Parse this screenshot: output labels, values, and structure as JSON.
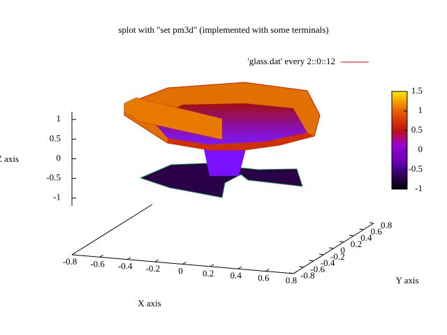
{
  "chart_data": {
    "type": "surface",
    "title": "splot with \"set pm3d\" (implemented with some terminals)",
    "series": [
      {
        "name": "'glass.dat' every 2::0::12",
        "color": "#cc0000"
      }
    ],
    "xlabel": "X axis",
    "ylabel": "Y axis",
    "zlabel": "Z axis",
    "xlim": [
      -0.8,
      0.8
    ],
    "xticks": [
      -0.8,
      -0.6,
      -0.4,
      -0.2,
      0,
      0.2,
      0.4,
      0.6,
      0.8
    ],
    "ylim": [
      -0.8,
      0.8
    ],
    "yticks": [
      -0.8,
      -0.6,
      -0.4,
      -0.2,
      0,
      0.2,
      0.4,
      0.6,
      0.8
    ],
    "zlim": [
      -1.2,
      1.2
    ],
    "zticks": [
      -1,
      -0.5,
      0,
      0.5,
      1
    ],
    "cblim": [
      -1,
      1.5
    ],
    "cbticks": [
      -1,
      -0.5,
      0,
      0.5,
      1,
      1.5
    ]
  }
}
